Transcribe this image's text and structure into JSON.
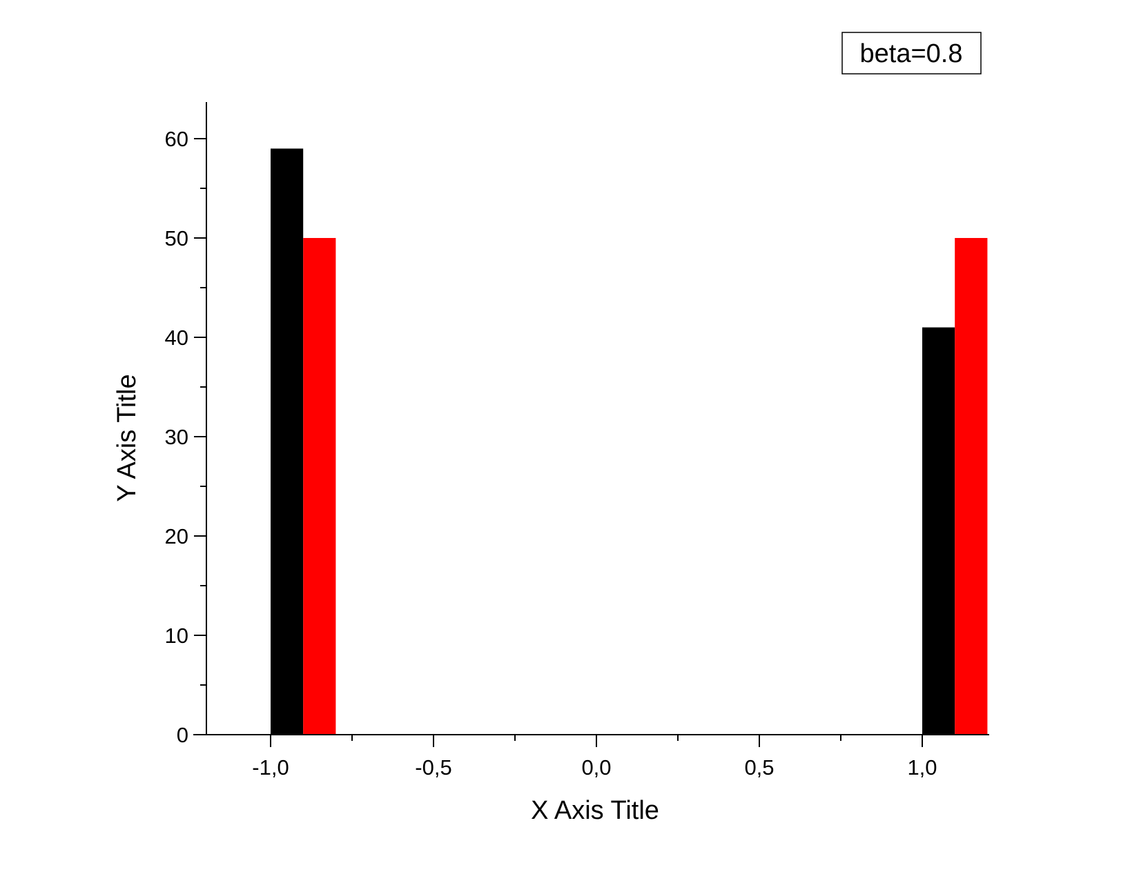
{
  "chart_data": {
    "type": "bar",
    "xlabel": "X Axis Title",
    "ylabel": "Y Axis Title",
    "annotation": "beta=0.8",
    "xlim": [
      -1.2,
      1.2
    ],
    "ylim": [
      0,
      63
    ],
    "x_ticks": [
      {
        "value": -1.0,
        "label": "-1,0"
      },
      {
        "value": -0.5,
        "label": "-0,5"
      },
      {
        "value": 0.0,
        "label": "0,0"
      },
      {
        "value": 0.5,
        "label": "0,5"
      },
      {
        "value": 1.0,
        "label": "1,0"
      }
    ],
    "y_ticks": [
      {
        "value": 0,
        "label": "0"
      },
      {
        "value": 10,
        "label": "10"
      },
      {
        "value": 20,
        "label": "20"
      },
      {
        "value": 30,
        "label": "30"
      },
      {
        "value": 40,
        "label": "40"
      },
      {
        "value": 50,
        "label": "50"
      },
      {
        "value": 60,
        "label": "60"
      }
    ],
    "bin_width": 0.1,
    "series": [
      {
        "color": "#000000",
        "x_start": [
          -1.0,
          1.0
        ],
        "values": [
          59,
          41
        ]
      },
      {
        "color": "#ff0000",
        "x_start": [
          -0.9,
          1.1
        ],
        "values": [
          50,
          50
        ]
      }
    ],
    "grid": false
  }
}
